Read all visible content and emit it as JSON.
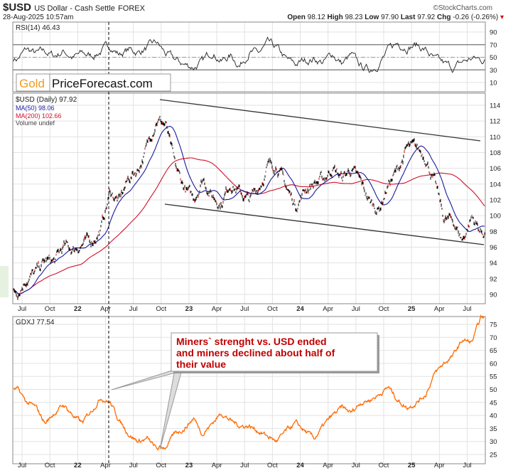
{
  "header": {
    "symbol": "$USD",
    "name": "US Dollar - Cash Settle",
    "exchange": "FOREX",
    "datetime": "28-Aug-2025 10:57am",
    "source": "©StockCharts.com",
    "open_label": "Open",
    "open": "98.12",
    "high_label": "High",
    "high": "98.23",
    "low_label": "Low",
    "low": "97.90",
    "last_label": "Last",
    "last": "97.92",
    "chg_label": "Chg",
    "chg": "-0.26 (-0.26%)"
  },
  "logo": {
    "gold": "Gold",
    "rest": "PriceForecast.com"
  },
  "colors": {
    "price": "#000000",
    "ma50": "#1a1a9c",
    "ma200": "#d0102a",
    "gdxj": "#ff6a00",
    "annotation": "#c00000"
  },
  "chart_data": [
    {
      "type": "line",
      "title": "RSI(14) 46.43",
      "legend": "top-left",
      "ylim": [
        0,
        100
      ],
      "yticks": [
        "90",
        "70",
        "50",
        "30",
        "10"
      ],
      "ytick_values": [
        90,
        70,
        50,
        30,
        10
      ],
      "reference_lines": [
        70,
        50,
        30
      ],
      "x": "monthly Jun-2021..Aug-2025",
      "values": [
        48,
        62,
        55,
        58,
        52,
        60,
        50,
        55,
        52,
        60,
        68,
        55,
        62,
        58,
        65,
        72,
        55,
        45,
        38,
        35,
        42,
        60,
        45,
        52,
        38,
        60,
        55,
        70,
        62,
        45,
        38,
        45,
        48,
        42,
        55,
        40,
        52,
        35,
        30,
        42,
        60,
        72,
        68,
        70,
        62,
        45,
        38,
        32,
        42,
        48,
        46
      ]
    },
    {
      "type": "line",
      "title": "$USD (Daily) 97.92",
      "legend": "top-left",
      "ylim": [
        89,
        115.5
      ],
      "yticks": [
        "114",
        "112",
        "110",
        "108",
        "106",
        "104",
        "102",
        "100",
        "98",
        "96",
        "94",
        "92",
        "90"
      ],
      "ytick_values": [
        114,
        112,
        110,
        108,
        106,
        104,
        102,
        100,
        98,
        96,
        94,
        92,
        90
      ],
      "series": [
        {
          "name": "$USD (Daily) 97.92",
          "values": [
            90.5,
            92.2,
            92.7,
            94.2,
            94.1,
            96,
            95.7,
            96.5,
            96.7,
            98.3,
            103,
            101.8,
            104.7,
            105.9,
            108.7,
            112.5,
            111.5,
            106,
            103.5,
            102,
            104.9,
            102.5,
            101.7,
            104.3,
            102.9,
            101.9,
            103.6,
            106.2,
            106.6,
            103.5,
            101.3,
            103.3,
            104.2,
            104.5,
            106.2,
            104.7,
            105.9,
            104.1,
            101.7,
            100.8,
            104,
            105.7,
            108.5,
            108.4,
            107.6,
            104.2,
            99.5,
            99.3,
            96.9,
            99.9,
            97.9
          ]
        },
        {
          "name": "MA(50) 98.06"
        },
        {
          "name": "MA(200) 102.66"
        },
        {
          "name": "Volume undef"
        }
      ],
      "annotations": [
        "upper channel line",
        "lower channel line"
      ]
    },
    {
      "type": "line",
      "title": "GDXJ 77.54",
      "legend": "top-left",
      "ylim": [
        23,
        78
      ],
      "yticks": [
        "75",
        "70",
        "65",
        "60",
        "55",
        "50",
        "45",
        "40",
        "35",
        "30",
        "25"
      ],
      "ytick_values": [
        75,
        70,
        65,
        60,
        55,
        50,
        45,
        40,
        35,
        30,
        25
      ],
      "values": [
        50,
        45,
        43,
        37,
        41,
        44,
        40,
        37,
        42,
        47,
        45,
        38,
        33,
        30,
        31,
        27,
        28,
        33,
        35,
        39,
        33,
        37,
        41,
        38,
        36,
        36,
        34,
        32,
        30,
        34,
        37,
        34,
        31,
        36,
        40,
        43,
        41,
        45,
        46,
        48,
        51,
        46,
        43,
        45,
        48,
        56,
        60,
        63,
        69,
        68,
        77.5
      ],
      "annotation": "Miners` strenght vs. USD ended and miners declined about half of their value"
    }
  ],
  "xaxis": {
    "labels": [
      "Jul",
      "Oct",
      "22",
      "Apr",
      "Jul",
      "Oct",
      "23",
      "Apr",
      "Jul",
      "Oct",
      "24",
      "Apr",
      "Jul",
      "Oct",
      "25",
      "Apr",
      "Jul"
    ],
    "bold": [
      "22",
      "23",
      "24",
      "25"
    ]
  },
  "callout": {
    "line1": "Miners` strenght vs. USD ended",
    "line2": "and miners declined about half of",
    "line3": "their value"
  }
}
